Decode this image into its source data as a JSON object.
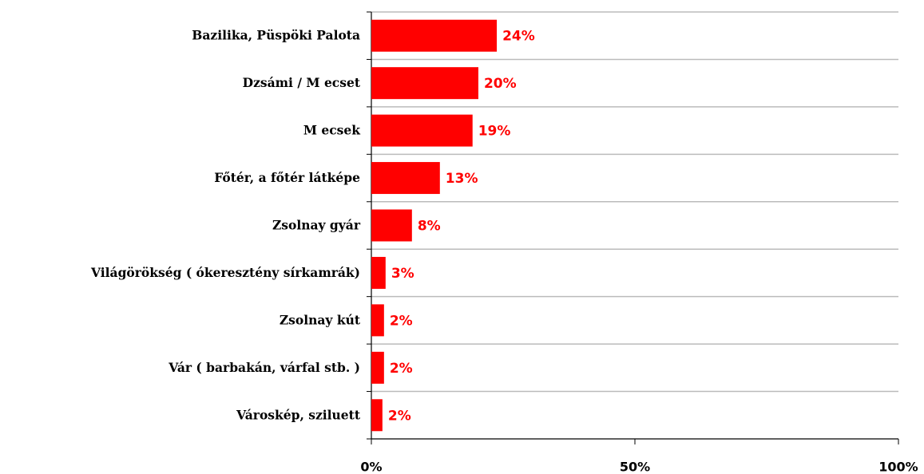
{
  "chart_data": {
    "type": "bar",
    "orientation": "horizontal",
    "categories": [
      "Bazilika, Püspöki Palota",
      "Dzsámi / M ecset",
      "M ecsek",
      "Főtér, a főtér látképe",
      "Zsolnay gyár",
      "Világörökség ( ókeresztény sírkamrák)",
      "Zsolnay kút",
      "Vár ( barbakán, várfal stb. )",
      "Városkép, sziluett"
    ],
    "values": [
      23.8,
      20.3,
      19.2,
      13,
      7.7,
      2.7,
      2.4,
      2.4,
      2.1
    ],
    "value_labels": [
      "24%",
      "20%",
      "19%",
      "13%",
      "8%",
      "3%",
      "2%",
      "2%",
      "2%"
    ],
    "color": "#ff0000",
    "xlim": [
      0,
      100
    ],
    "xticks": [
      {
        "value": 0,
        "label": "0%"
      },
      {
        "value": 50,
        "label": "50%"
      },
      {
        "value": 100,
        "label": "100%"
      }
    ]
  }
}
